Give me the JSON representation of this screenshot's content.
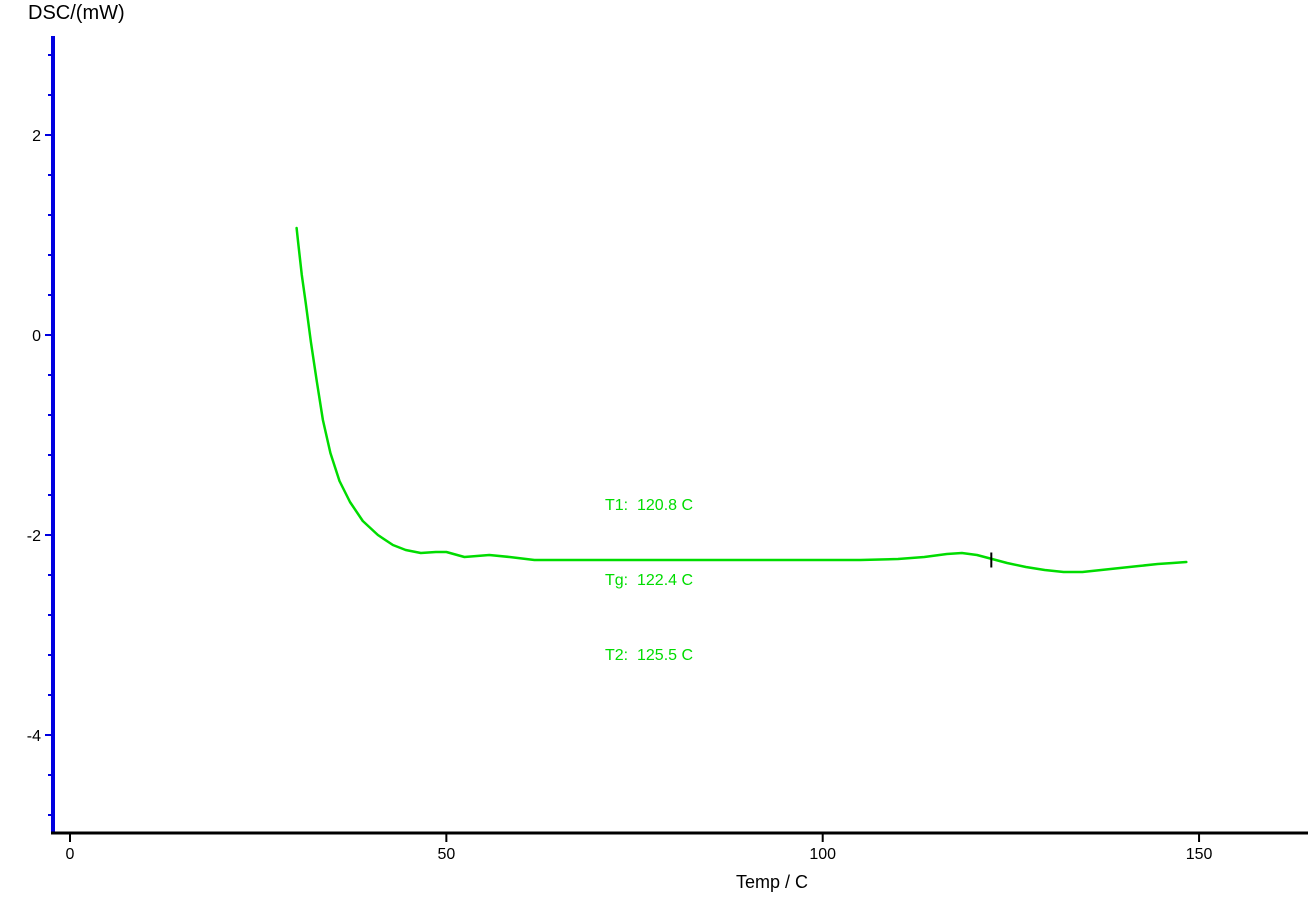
{
  "page": {
    "background_color": "#ffffff"
  },
  "chart_data": {
    "type": "line",
    "title": "",
    "ylabel": "DSC/(mW)",
    "xlabel": "Temp / C",
    "grid": false,
    "legend": false,
    "xlim": [
      -2.3,
      164.5
    ],
    "ylim": [
      -5,
      3
    ],
    "xticks": [
      0,
      50,
      100,
      150
    ],
    "yticks": [
      2,
      0,
      -2,
      -4
    ],
    "y_minor_tick_step": 0.4,
    "y_minor_tick_range": [
      -4.8,
      2.8
    ],
    "x_axis_color": "#000000",
    "y_axis_color": "#0000e0",
    "tick_label_color": "#000000",
    "series": [
      {
        "name": "DSC curve",
        "color": "#00dc00",
        "points": [
          [
            30.1,
            1.07
          ],
          [
            30.3,
            0.93
          ],
          [
            30.8,
            0.6
          ],
          [
            31.3,
            0.33
          ],
          [
            32.0,
            -0.07
          ],
          [
            32.8,
            -0.47
          ],
          [
            33.6,
            -0.85
          ],
          [
            34.6,
            -1.18
          ],
          [
            35.8,
            -1.46
          ],
          [
            37.2,
            -1.67
          ],
          [
            38.9,
            -1.86
          ],
          [
            40.9,
            -2.0
          ],
          [
            42.9,
            -2.1
          ],
          [
            44.6,
            -2.15
          ],
          [
            46.6,
            -2.18
          ],
          [
            48.6,
            -2.17
          ],
          [
            50.0,
            -2.17
          ],
          [
            52.4,
            -2.22
          ],
          [
            55.7,
            -2.2
          ],
          [
            58.4,
            -2.22
          ],
          [
            61.7,
            -2.25
          ],
          [
            66.0,
            -2.25
          ],
          [
            75.0,
            -2.25
          ],
          [
            85.0,
            -2.25
          ],
          [
            95.0,
            -2.25
          ],
          [
            105.0,
            -2.25
          ],
          [
            110.0,
            -2.24
          ],
          [
            113.5,
            -2.22
          ],
          [
            116.5,
            -2.19
          ],
          [
            118.5,
            -2.18
          ],
          [
            120.5,
            -2.2
          ],
          [
            122.5,
            -2.24
          ],
          [
            124.5,
            -2.28
          ],
          [
            127.0,
            -2.32
          ],
          [
            129.5,
            -2.35
          ],
          [
            132.0,
            -2.37
          ],
          [
            134.5,
            -2.37
          ],
          [
            137.0,
            -2.35
          ],
          [
            139.5,
            -2.33
          ],
          [
            142.0,
            -2.31
          ],
          [
            144.5,
            -2.29
          ],
          [
            146.5,
            -2.28
          ],
          [
            148.3,
            -2.27
          ]
        ]
      }
    ],
    "cursor_marker": {
      "x": 122.4,
      "y": -2.25,
      "half_height": 0.075,
      "color": "#000000"
    },
    "annotations": {
      "color": "#00dc00",
      "lines": [
        "T1:  120.8 C",
        "Tg:  122.4 C",
        "T2:  125.5 C"
      ]
    }
  }
}
